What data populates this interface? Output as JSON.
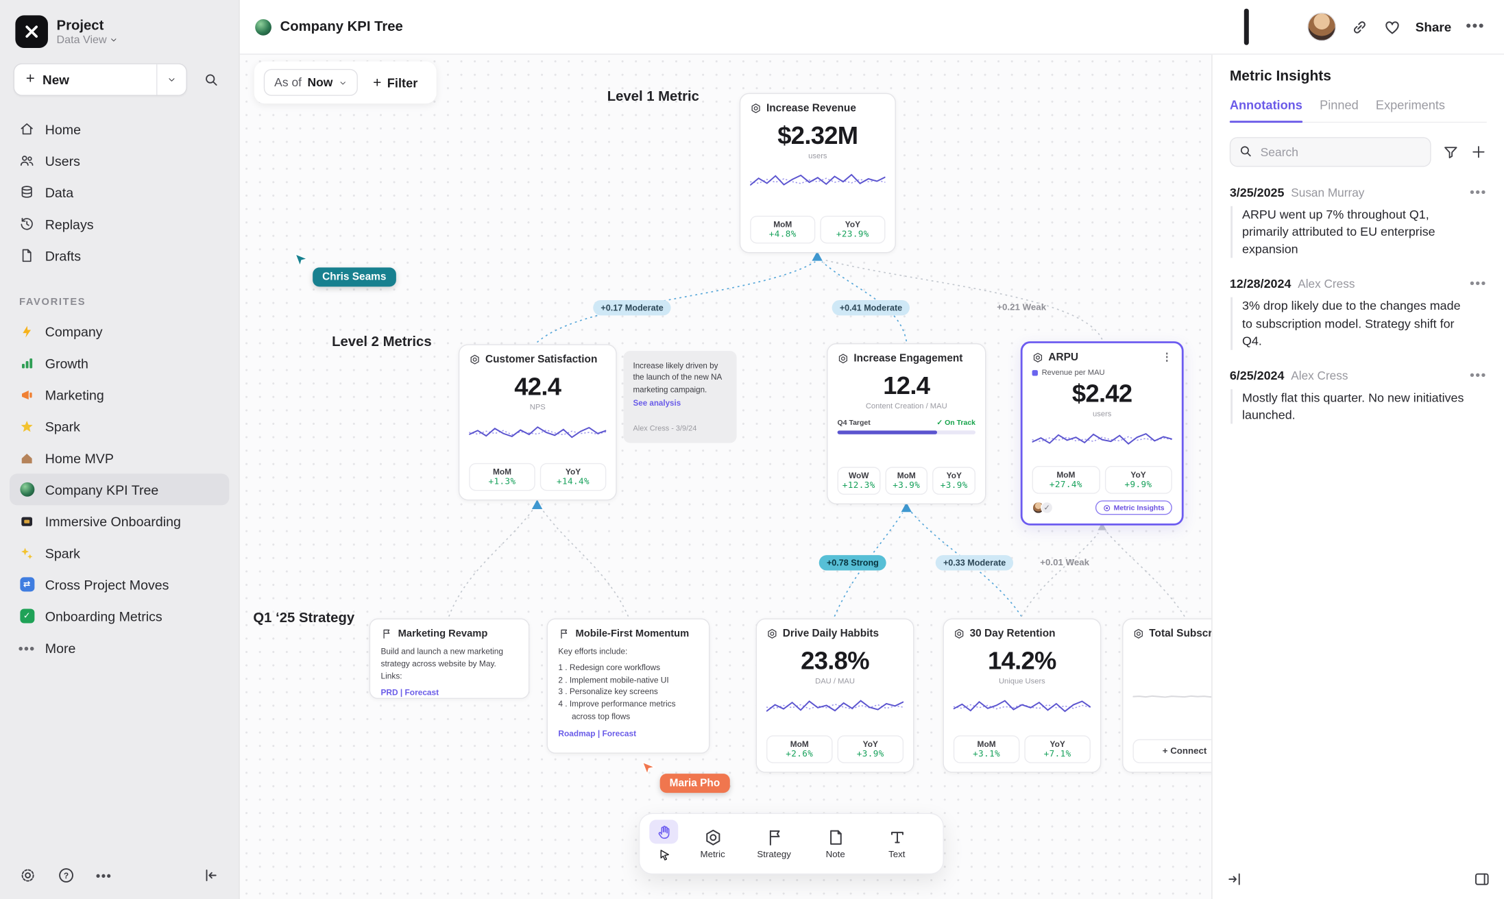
{
  "sidebar": {
    "project_name": "Project",
    "project_view": "Data View",
    "new_label": "New",
    "nav": [
      {
        "label": "Home"
      },
      {
        "label": "Users"
      },
      {
        "label": "Data"
      },
      {
        "label": "Replays"
      },
      {
        "label": "Drafts"
      }
    ],
    "favorites_header": "FAVORITES",
    "favorites": [
      {
        "label": "Company"
      },
      {
        "label": "Growth"
      },
      {
        "label": "Marketing"
      },
      {
        "label": "Spark"
      },
      {
        "label": "Home MVP"
      },
      {
        "label": "Company KPI Tree"
      },
      {
        "label": "Immersive Onboarding"
      },
      {
        "label": "Spark"
      },
      {
        "label": "Cross Project Moves"
      },
      {
        "label": "Onboarding Metrics"
      }
    ],
    "more_label": "More"
  },
  "topbar": {
    "title": "Company KPI Tree",
    "share_label": "Share"
  },
  "controls": {
    "asof_label": "As of",
    "asof_value": "Now",
    "filter_label": "Filter"
  },
  "levels": {
    "level1": "Level 1 Metric",
    "level2": "Level 2 Metrics",
    "strategy": "Q1 ‘25 Strategy"
  },
  "cursors": {
    "chris": "Chris Seams",
    "maria": "Maria Pho"
  },
  "edges": {
    "e1": "+0.17 Moderate",
    "e2": "+0.41 Moderate",
    "e3": "+0.21 Weak",
    "e4": "+0.78 Strong",
    "e5": "+0.33 Moderate",
    "e6": "+0.01 Weak"
  },
  "cards": {
    "revenue": {
      "title": "Increase Revenue",
      "value": "$2.32M",
      "unit": "users",
      "stats": [
        {
          "label": "MoM",
          "value": "+4.8%"
        },
        {
          "label": "YoY",
          "value": "+23.9%"
        }
      ],
      "spark_a": [
        38,
        62,
        45,
        70,
        40,
        58,
        72,
        48,
        64,
        42,
        68,
        50,
        74,
        44,
        60,
        52,
        66
      ],
      "spark_b": [
        50,
        45,
        58,
        48,
        60,
        50,
        44,
        56,
        50,
        62,
        48,
        54,
        46,
        58,
        50,
        55,
        48
      ]
    },
    "csat": {
      "title": "Customer Satisfaction",
      "value": "42.4",
      "unit": "NPS",
      "stats": [
        {
          "label": "MoM",
          "value": "+1.3%"
        },
        {
          "label": "YoY",
          "value": "+14.4%"
        }
      ],
      "spark_a": [
        45,
        58,
        40,
        65,
        48,
        38,
        60,
        45,
        70,
        52,
        42,
        62,
        35,
        55,
        68,
        48,
        58
      ],
      "spark_b": [
        52,
        46,
        56,
        48,
        58,
        44,
        54,
        50,
        46,
        60,
        50,
        44,
        56,
        48,
        52,
        46,
        54
      ]
    },
    "note": {
      "text": "Increase likely driven by the launch of the new NA marketing campaign.",
      "link": "See analysis",
      "author": "Alex Cress - 3/9/24"
    },
    "engagement": {
      "title": "Increase Engagement",
      "value": "12.4",
      "unit": "Content Creation / MAU",
      "target_label": "Q4 Target",
      "target_status": "On Track",
      "stats": [
        {
          "label": "WoW",
          "value": "+12.3%"
        },
        {
          "label": "MoM",
          "value": "+3.9%"
        },
        {
          "label": "YoY",
          "value": "+3.9%"
        }
      ]
    },
    "arpu": {
      "title": "ARPU",
      "legend": "Revenue per MAU",
      "value": "$2.42",
      "unit": "users",
      "stats": [
        {
          "label": "MoM",
          "value": "+27.4%"
        },
        {
          "label": "YoY",
          "value": "+9.9%"
        }
      ],
      "badge": "Metric Insights",
      "spark_a": [
        42,
        56,
        38,
        66,
        48,
        58,
        40,
        68,
        50,
        44,
        64,
        36,
        58,
        70,
        46,
        60,
        52
      ],
      "spark_b": [
        50,
        44,
        56,
        48,
        58,
        46,
        52,
        44,
        58,
        50,
        46,
        60,
        48,
        54,
        46,
        56,
        50
      ]
    },
    "mkt": {
      "title": "Marketing Revamp",
      "body": "Build and launch a new marketing strategy across website by May. Links:",
      "links": "PRD | Forecast"
    },
    "mobile": {
      "title": "Mobile-First Momentum",
      "intro": "Key efforts include:",
      "items": [
        "1 .  Redesign core workflows",
        "2 .  Implement mobile-native UI",
        "3 .  Personalize key screens",
        "4 .  Improve performance metrics across top flows"
      ],
      "links": "Roadmap | Forecast"
    },
    "habits": {
      "title": "Drive Daily Habbits",
      "value": "23.8%",
      "unit": "DAU / MAU",
      "stats": [
        {
          "label": "MoM",
          "value": "+2.6%"
        },
        {
          "label": "YoY",
          "value": "+3.9%"
        }
      ],
      "spark_a": [
        36,
        58,
        44,
        66,
        40,
        70,
        48,
        56,
        38,
        64,
        46,
        72,
        50,
        42,
        62,
        54,
        68
      ],
      "spark_b": [
        50,
        46,
        56,
        48,
        58,
        44,
        54,
        48,
        60,
        50,
        44,
        56,
        48,
        58,
        46,
        54,
        50
      ]
    },
    "retention": {
      "title": "30 Day Retention",
      "value": "14.2%",
      "unit": "Unique Users",
      "stats": [
        {
          "label": "MoM",
          "value": "+3.1%"
        },
        {
          "label": "YoY",
          "value": "+7.1%"
        }
      ],
      "spark_a": [
        44,
        60,
        38,
        68,
        46,
        56,
        72,
        42,
        58,
        48,
        66,
        40,
        62,
        36,
        58,
        70,
        50
      ],
      "spark_b": [
        52,
        46,
        58,
        48,
        56,
        44,
        52,
        48,
        60,
        50,
        46,
        58,
        48,
        54,
        46,
        56,
        50
      ]
    },
    "subs": {
      "title": "Total Subscriptions",
      "connect_label": "+  Connect",
      "spark_a": [
        50,
        51,
        49,
        52,
        50,
        48,
        51,
        50,
        49,
        52,
        50,
        51,
        49,
        50,
        51,
        49,
        50
      ]
    }
  },
  "toolbar": {
    "metric": "Metric",
    "strategy": "Strategy",
    "note": "Note",
    "text": "Text"
  },
  "panel": {
    "title": "Metric Insights",
    "tabs": [
      "Annotations",
      "Pinned",
      "Experiments"
    ],
    "search_placeholder": "Search",
    "annotations": [
      {
        "date": "3/25/2025",
        "author": "Susan Murray",
        "body": "ARPU went up 7% throughout Q1, primarily attributed to EU enterprise expansion"
      },
      {
        "date": "12/28/2024",
        "author": "Alex Cress",
        "body": "3% drop likely due to the changes made to subscription model. Strategy shift for Q4."
      },
      {
        "date": "6/25/2024",
        "author": "Alex Cress",
        "body": "Mostly flat this quarter. No new initiatives launched."
      }
    ]
  }
}
